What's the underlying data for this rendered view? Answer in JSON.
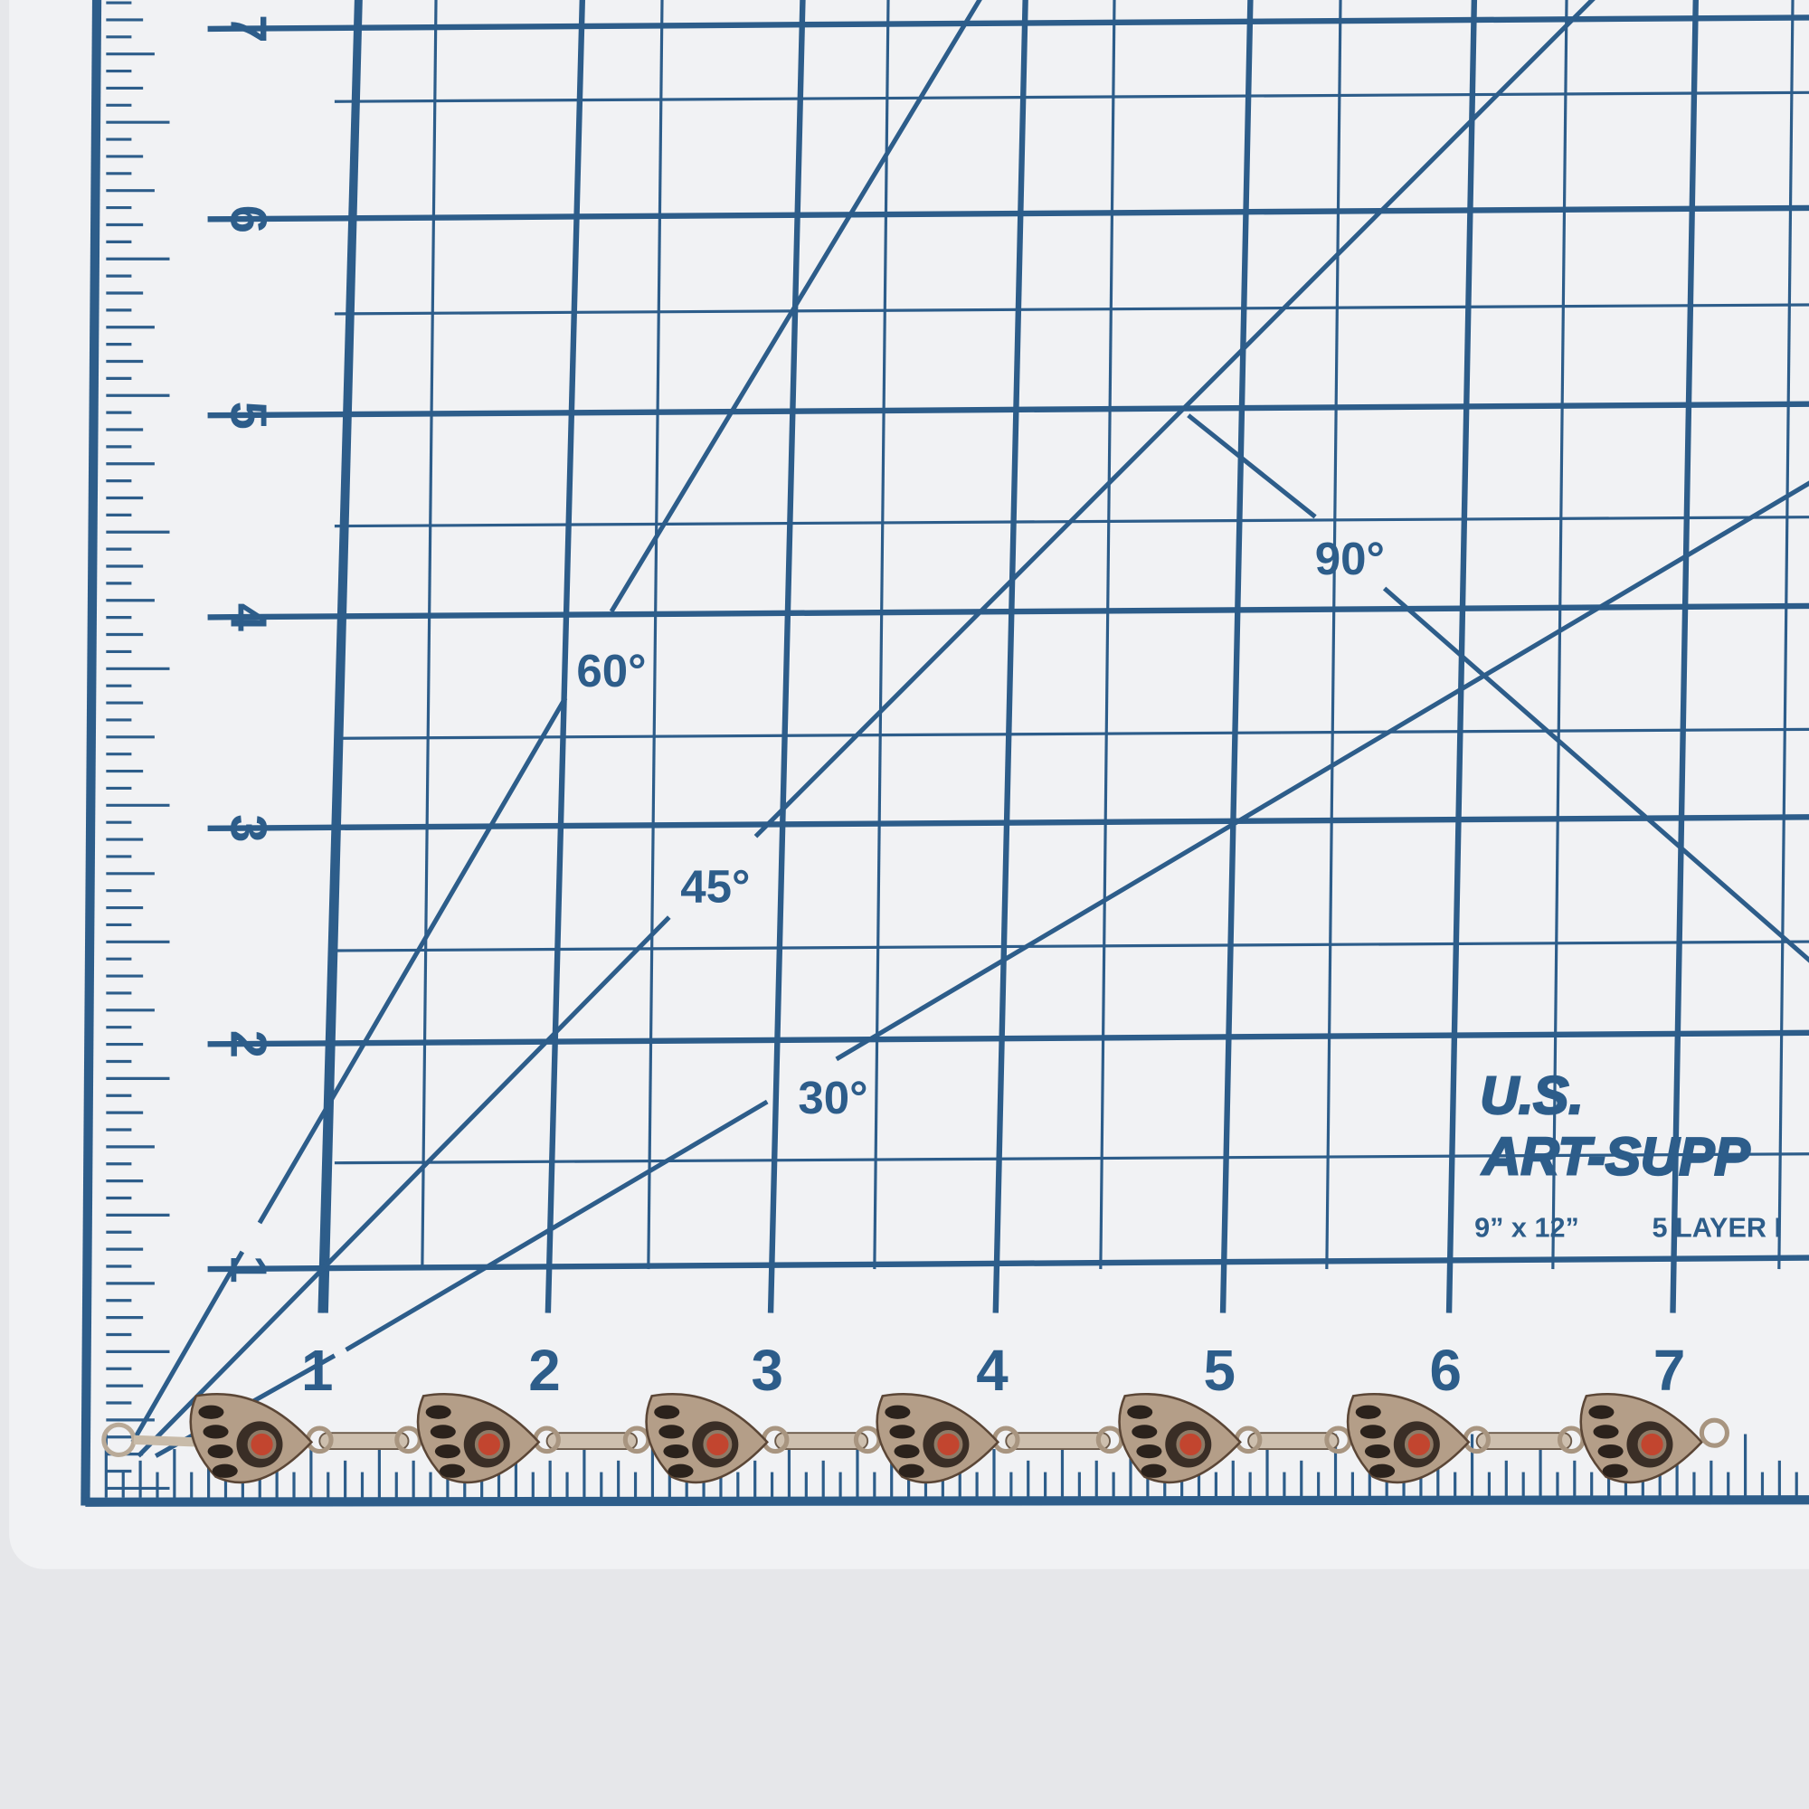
{
  "mat": {
    "left_scale": [
      "1",
      "2",
      "3",
      "4",
      "5",
      "6",
      "7"
    ],
    "bottom_scale": [
      "1",
      "2",
      "3",
      "4",
      "5",
      "6",
      "7"
    ],
    "angles": [
      "30°",
      "45°",
      "60°",
      "90°"
    ],
    "logo": {
      "line1": "U.S.",
      "line2": "ART-SUPP",
      "size": "9” x 12”",
      "layers": "5 LAYER I"
    }
  }
}
